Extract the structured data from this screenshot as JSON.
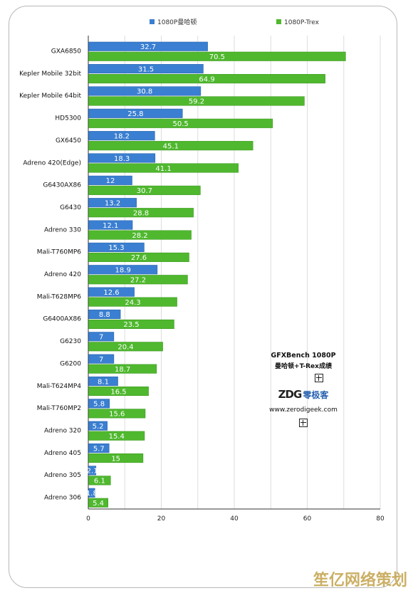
{
  "chart_data": {
    "type": "bar",
    "orientation": "horizontal",
    "categories": [
      "GXA6850",
      "Kepler Mobile 32bit",
      "Kepler Mobile 64bit",
      "HD5300",
      "GX6450",
      "Adreno 420(Edge)",
      "G6430AX86",
      "G6430",
      "Adreno 330",
      "Mali-T760MP6",
      "Adreno 420",
      "Mali-T628MP6",
      "G6400AX86",
      "G6230",
      "G6200",
      "Mali-T624MP4",
      "Mali-T760MP2",
      "Adreno 320",
      "Adreno 405",
      "Adreno 305",
      "Adreno 306"
    ],
    "series": [
      {
        "name": "1080P曼哈顿",
        "color": "#3a7fd1",
        "values": [
          32.7,
          31.5,
          30.8,
          25.8,
          18.2,
          18.3,
          12,
          13.2,
          12.1,
          15.3,
          18.9,
          12.6,
          8.8,
          7,
          7,
          8.1,
          5.8,
          5.2,
          5.7,
          2.1,
          1.8
        ]
      },
      {
        "name": "1080P-Trex",
        "color": "#4fb82e",
        "values": [
          70.5,
          64.9,
          59.2,
          50.5,
          45.1,
          41.1,
          30.7,
          28.8,
          28.2,
          27.6,
          27.2,
          24.3,
          23.5,
          20.4,
          18.7,
          16.5,
          15.6,
          15.4,
          15,
          6.1,
          5.4
        ]
      }
    ],
    "value_labels": [
      [
        "32.7",
        "31.5",
        "30.8",
        "25.8",
        "18.2",
        "18.3",
        "12",
        "13.2",
        "12.1",
        "15.3",
        "18.9",
        "12.6",
        "8.8",
        "7",
        "7",
        "8.1",
        "5.8",
        "5.2",
        "5.7",
        "2.1",
        "1.8"
      ],
      [
        "70.5",
        "64.9",
        "59.2",
        "50.5",
        "45.1",
        "41.1",
        "30.7",
        "28.8",
        "28.2",
        "27.6",
        "27.2",
        "24.3",
        "23.5",
        "20.4",
        "18.7",
        "16.5",
        "15.6",
        "15.4",
        "15",
        "6.1",
        "5.4"
      ]
    ],
    "xlim": [
      0,
      80
    ],
    "xticks": [
      0,
      20,
      40,
      60,
      80
    ],
    "xtick_labels": [
      "0",
      "20",
      "40",
      "60",
      "80"
    ],
    "grid": true,
    "legend_position": "top"
  },
  "annotation": {
    "title": "GFXBench 1080P",
    "subtitle": "曼哈顿+T-Rex成绩",
    "logo_mark": "ZDG",
    "logo_text": "零极客",
    "url": "www.zerodigeek.com"
  },
  "watermark": "笙亿网络策划"
}
